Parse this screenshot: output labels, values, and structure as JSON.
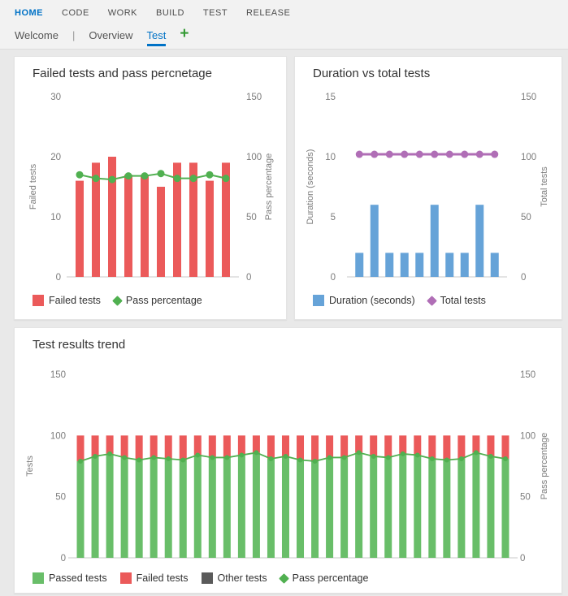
{
  "nav": {
    "items": [
      {
        "label": "HOME",
        "active": true
      },
      {
        "label": "CODE",
        "active": false
      },
      {
        "label": "WORK",
        "active": false
      },
      {
        "label": "BUILD",
        "active": false
      },
      {
        "label": "TEST",
        "active": false
      },
      {
        "label": "RELEASE",
        "active": false
      }
    ]
  },
  "subnav": {
    "items": [
      {
        "label": "Welcome",
        "active": false
      },
      {
        "label": "Overview",
        "active": false
      },
      {
        "label": "Test",
        "active": true
      }
    ],
    "separator": "|",
    "add_button": "+"
  },
  "colors": {
    "accent_blue": "#0072C6",
    "failed_red": "#EB5A5A",
    "passed_green": "#69BE69",
    "pass_line_green": "#50B050",
    "duration_blue": "#66A3D8",
    "total_purple": "#B06EB6",
    "other_gray": "#5A5A5A",
    "add_green": "#349A34"
  },
  "chart_data": [
    {
      "type": "bar",
      "title": "Failed tests and pass percnetage",
      "x_tick_labels": [],
      "gridlines": false,
      "legend_position": "bottom",
      "left_axis": {
        "label": "Failed tests",
        "min": 0,
        "max": 30,
        "ticks": [
          30,
          20,
          10,
          0
        ]
      },
      "right_axis": {
        "label": "Pass percentage",
        "min": 0,
        "max": 150,
        "ticks": [
          150,
          100,
          50,
          0
        ]
      },
      "series": [
        {
          "name": "Failed tests",
          "kind": "bar",
          "axis": "left",
          "color": "#EB5A5A",
          "values": [
            16,
            19,
            20,
            17,
            17,
            15,
            19,
            19,
            16,
            19
          ]
        },
        {
          "name": "Pass percentage",
          "kind": "line",
          "axis": "right",
          "color": "#50B050",
          "values": [
            85,
            82,
            81,
            84,
            84,
            86,
            82,
            82,
            85,
            82
          ]
        }
      ],
      "legend": [
        {
          "label": "Failed tests",
          "marker": "square",
          "color": "#EB5A5A"
        },
        {
          "label": "Pass percentage",
          "marker": "diamond",
          "color": "#50B050"
        }
      ]
    },
    {
      "type": "bar",
      "title": "Duration vs total tests",
      "x_tick_labels": [],
      "gridlines": false,
      "legend_position": "bottom",
      "left_axis": {
        "label": "Duration (seconds)",
        "min": 0,
        "max": 15,
        "ticks": [
          15,
          10,
          5,
          0
        ]
      },
      "right_axis": {
        "label": "Total tests",
        "min": 0,
        "max": 150,
        "ticks": [
          150,
          100,
          50,
          0
        ]
      },
      "series": [
        {
          "name": "Duration (seconds)",
          "kind": "bar",
          "axis": "left",
          "color": "#66A3D8",
          "values": [
            2,
            6,
            2,
            2,
            2,
            6,
            2,
            2,
            6,
            2
          ]
        },
        {
          "name": "Total tests",
          "kind": "line",
          "axis": "right",
          "color": "#B06EB6",
          "values": [
            102,
            102,
            102,
            102,
            102,
            102,
            102,
            102,
            102,
            102
          ]
        }
      ],
      "legend": [
        {
          "label": "Duration (seconds)",
          "marker": "square",
          "color": "#66A3D8"
        },
        {
          "label": "Total tests",
          "marker": "diamond",
          "color": "#B06EB6"
        }
      ]
    },
    {
      "type": "bar",
      "title": "Test results trend",
      "x_tick_labels": [],
      "gridlines": false,
      "stacked": true,
      "legend_position": "bottom",
      "left_axis": {
        "label": "Tests",
        "min": 0,
        "max": 150,
        "ticks": [
          150,
          100,
          50,
          0
        ]
      },
      "right_axis": {
        "label": "Pass percentage",
        "min": 0,
        "max": 150,
        "ticks": [
          150,
          100,
          50,
          0
        ]
      },
      "series": [
        {
          "name": "Passed tests",
          "kind": "bar",
          "axis": "left",
          "color": "#69BE69",
          "values": [
            79,
            83,
            85,
            82,
            80,
            82,
            81,
            80,
            84,
            82,
            82,
            84,
            86,
            81,
            83,
            80,
            79,
            82,
            82,
            86,
            83,
            82,
            85,
            84,
            81,
            80,
            81,
            86,
            83,
            81
          ]
        },
        {
          "name": "Failed tests",
          "kind": "bar",
          "axis": "left",
          "color": "#EB5A5A",
          "values": [
            21,
            17,
            15,
            18,
            20,
            18,
            19,
            20,
            16,
            18,
            18,
            16,
            14,
            19,
            17,
            20,
            21,
            18,
            18,
            14,
            17,
            18,
            15,
            16,
            19,
            20,
            19,
            14,
            17,
            19
          ]
        },
        {
          "name": "Other tests",
          "kind": "bar",
          "axis": "left",
          "color": "#5A5A5A",
          "values": [
            0,
            0,
            0,
            0,
            0,
            0,
            0,
            0,
            0,
            0,
            0,
            0,
            0,
            0,
            0,
            0,
            0,
            0,
            0,
            0,
            0,
            0,
            0,
            0,
            0,
            0,
            0,
            0,
            0,
            0
          ]
        },
        {
          "name": "Pass percentage",
          "kind": "line",
          "axis": "right",
          "color": "#50B050",
          "values": [
            79,
            83,
            85,
            82,
            80,
            82,
            81,
            80,
            84,
            82,
            82,
            84,
            86,
            81,
            83,
            80,
            79,
            82,
            82,
            86,
            83,
            82,
            85,
            84,
            81,
            80,
            81,
            86,
            83,
            81
          ]
        }
      ],
      "legend": [
        {
          "label": "Passed tests",
          "marker": "square",
          "color": "#69BE69"
        },
        {
          "label": "Failed tests",
          "marker": "square",
          "color": "#EB5A5A"
        },
        {
          "label": "Other tests",
          "marker": "square",
          "color": "#5A5A5A"
        },
        {
          "label": "Pass percentage",
          "marker": "diamond",
          "color": "#50B050"
        }
      ]
    }
  ]
}
